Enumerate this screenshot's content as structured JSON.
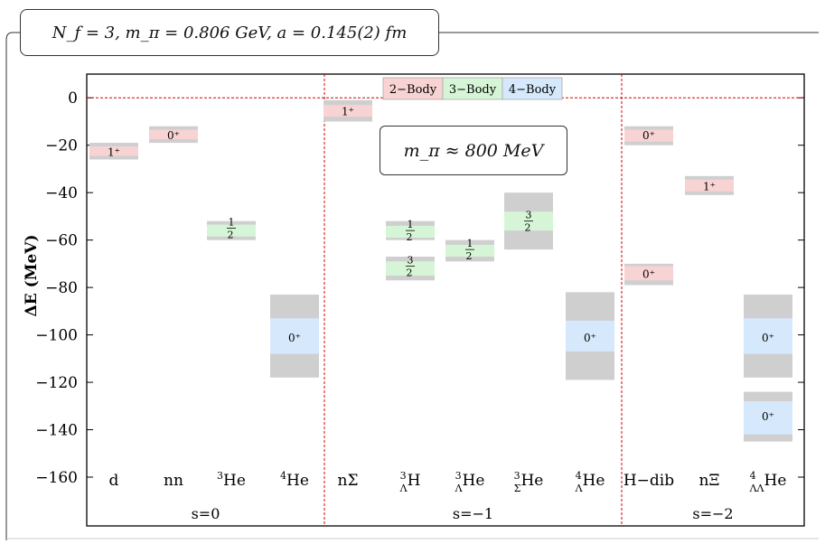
{
  "header": {
    "text": "N_f = 3,  m_π = 0.806 GeV,  a = 0.145(2) fm"
  },
  "annotation": {
    "text": "m_π ≈ 800 MeV"
  },
  "colors": {
    "two_body": "#f8d3d3",
    "three_body": "#d6f5d6",
    "four_body": "#d6e8fb",
    "band": "#cfcfcf",
    "zero_line": "#d40000"
  },
  "chart_data": {
    "type": "bar",
    "ylabel": "ΔE (MeV)",
    "ylim": [
      -160,
      10
    ],
    "yticks": [
      0,
      -20,
      -40,
      -60,
      -80,
      -100,
      -120,
      -140,
      -160
    ],
    "legend": {
      "placement": "top-center",
      "entries": [
        "2−Body",
        "3−Body",
        "4−Body"
      ]
    },
    "groups": [
      "s=0",
      "s=−1",
      "s=−2"
    ],
    "categories": [
      {
        "pre": "",
        "sup": "",
        "sub": "",
        "main": "d",
        "group": 0
      },
      {
        "pre": "",
        "sup": "",
        "sub": "",
        "main": "nn",
        "group": 0
      },
      {
        "pre": "",
        "sup": "3",
        "sub": "",
        "main": "He",
        "group": 0
      },
      {
        "pre": "",
        "sup": "4",
        "sub": "",
        "main": "He",
        "group": 0
      },
      {
        "pre": "",
        "sup": "",
        "sub": "",
        "main": "nΣ",
        "group": 1
      },
      {
        "pre": "",
        "sup": "3",
        "sub": "Λ",
        "main": "H",
        "group": 1
      },
      {
        "pre": "",
        "sup": "3",
        "sub": "Λ",
        "main": "He",
        "group": 1
      },
      {
        "pre": "",
        "sup": "3",
        "sub": "Σ",
        "main": "He",
        "group": 1
      },
      {
        "pre": "",
        "sup": "4",
        "sub": "Λ",
        "main": "He",
        "group": 1
      },
      {
        "pre": "",
        "sup": "",
        "sub": "",
        "main": "H−dib",
        "group": 2
      },
      {
        "pre": "",
        "sup": "",
        "sub": "",
        "main": "nΞ",
        "group": 2
      },
      {
        "pre": "",
        "sup": "4",
        "sub": "ΛΛ",
        "main": "He",
        "group": 2
      }
    ],
    "levels": [
      {
        "cat": 0,
        "value": -22.5,
        "err_total": [
          -26,
          -19
        ],
        "err_stat": [
          -24.5,
          -20.5
        ],
        "body": 2,
        "jp": "1⁺"
      },
      {
        "cat": 1,
        "value": -15.5,
        "err_total": [
          -19,
          -12
        ],
        "err_stat": [
          -17.5,
          -13.5
        ],
        "body": 2,
        "jp": "0⁺"
      },
      {
        "cat": 2,
        "value": -55,
        "err_total": [
          -60,
          -52
        ],
        "err_stat": [
          -58.5,
          -53.5
        ],
        "body": 3,
        "jp": "1/2⁺"
      },
      {
        "cat": 3,
        "value": -101,
        "err_total": [
          -118,
          -83
        ],
        "err_stat": [
          -108,
          -93
        ],
        "body": 4,
        "jp": "0⁺"
      },
      {
        "cat": 4,
        "value": -5.5,
        "err_total": [
          -10,
          -1
        ],
        "err_stat": [
          -8,
          -3
        ],
        "body": 2,
        "jp": "1⁺"
      },
      {
        "cat": 5,
        "value": -56,
        "err_total": [
          -60,
          -52
        ],
        "err_stat": [
          -59,
          -54
        ],
        "body": 3,
        "jp": "1/2⁺"
      },
      {
        "cat": 5,
        "value": -71,
        "err_total": [
          -77,
          -67
        ],
        "err_stat": [
          -75,
          -69
        ],
        "body": 3,
        "jp": "3/2⁺"
      },
      {
        "cat": 6,
        "value": -64,
        "err_total": [
          -69,
          -60
        ],
        "err_stat": [
          -67,
          -62
        ],
        "body": 3,
        "jp": "1/2⁺"
      },
      {
        "cat": 7,
        "value": -52,
        "err_total": [
          -64,
          -40
        ],
        "err_stat": [
          -56,
          -48
        ],
        "body": 3,
        "jp": "3/2⁺"
      },
      {
        "cat": 8,
        "value": -101,
        "err_total": [
          -119,
          -82
        ],
        "err_stat": [
          -107,
          -94
        ],
        "body": 4,
        "jp": "0⁺"
      },
      {
        "cat": 9,
        "value": -15.5,
        "err_total": [
          -20,
          -12
        ],
        "err_stat": [
          -18.5,
          -13.5
        ],
        "body": 2,
        "jp": "0⁺"
      },
      {
        "cat": 9,
        "value": -74,
        "err_total": [
          -79,
          -70
        ],
        "err_stat": [
          -77,
          -71
        ],
        "body": 2,
        "jp": "0⁺"
      },
      {
        "cat": 10,
        "value": -37,
        "err_total": [
          -41,
          -33
        ],
        "err_stat": [
          -39.5,
          -34.5
        ],
        "body": 2,
        "jp": "1⁺"
      },
      {
        "cat": 11,
        "value": -101,
        "err_total": [
          -118,
          -83
        ],
        "err_stat": [
          -108,
          -93
        ],
        "body": 4,
        "jp": "0⁺"
      },
      {
        "cat": 11,
        "value": -134,
        "err_total": [
          -145,
          -124
        ],
        "err_stat": [
          -142,
          -128
        ],
        "body": 4,
        "jp": "0⁺"
      }
    ]
  }
}
